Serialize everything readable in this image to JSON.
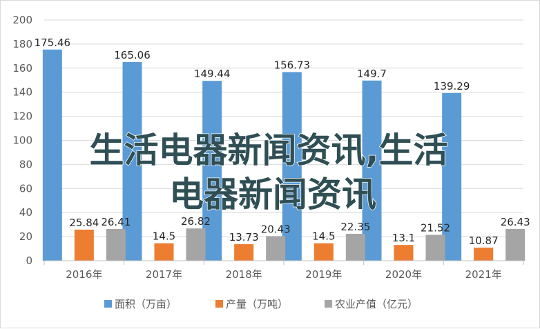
{
  "chart_data": {
    "type": "bar",
    "categories": [
      "2016年",
      "2017年",
      "2018年",
      "2019年",
      "2020年",
      "2021年"
    ],
    "series": [
      {
        "name": "面积（万亩）",
        "color": "#5b9bd5",
        "values": [
          175.46,
          165.06,
          149.44,
          156.73,
          149.7,
          139.29
        ],
        "labels": [
          "175.46",
          "165.06",
          "149.44",
          "156.73",
          "149.7",
          "139.29"
        ]
      },
      {
        "name": "产量（万吨）",
        "color": "#ed7d31",
        "values": [
          25.84,
          14.5,
          13.73,
          14.5,
          13.1,
          10.87
        ],
        "labels": [
          "25.84",
          "14.5",
          "13.73",
          "14.5",
          "13.1",
          "10.87"
        ]
      },
      {
        "name": "农业产值（亿元）",
        "color": "#a5a5a5",
        "values": [
          26.41,
          26.82,
          20.43,
          22.35,
          21.52,
          26.43
        ],
        "labels": [
          "26.41",
          "26.82",
          "20.43",
          "22.35",
          "21.52",
          "26.43"
        ]
      }
    ],
    "y_ticks": [
      "0",
      "20",
      "40",
      "60",
      "80",
      "100",
      "120",
      "140",
      "160",
      "180",
      "200"
    ],
    "ylim": [
      0,
      200
    ],
    "grid": true,
    "legend_position": "bottom",
    "title": "",
    "xlabel": "",
    "ylabel": ""
  },
  "watermark": {
    "line1": "生活电器新闻资讯,生活",
    "line2": "电器新闻资讯"
  }
}
